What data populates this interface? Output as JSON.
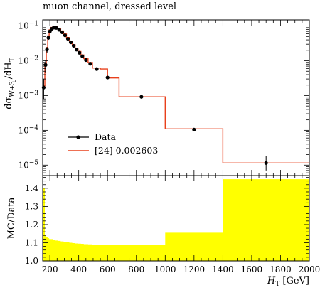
{
  "chart_data": [
    {
      "type": "line",
      "panel": "main",
      "title": "muon channel, dressed level",
      "ylabel": "dσ_{W+3j}/dH_T",
      "yscale": "log",
      "xlim": [
        150,
        2000
      ],
      "ylim": [
        5e-06,
        0.15
      ],
      "y_tick_labels": [
        "10^-5",
        "10^-4",
        "10^-3",
        "10^-2",
        "10^-1"
      ],
      "legend_position": "center-left",
      "legend": [
        "Data",
        "[24] 0.002603"
      ],
      "colors": {
        "data": "#000000",
        "mc": "#e8401c"
      },
      "series": [
        {
          "name": "Data",
          "style": "points-with-errorbars",
          "points": [
            {
              "x": 157,
              "y": 0.0017,
              "err_low": 0.0009,
              "err_high": 0.0013
            },
            {
              "x": 170,
              "y": 0.0076,
              "err_low": 0.003,
              "err_high": 0.003
            },
            {
              "x": 180,
              "y": 0.021,
              "err_low": 0.004,
              "err_high": 0.004
            },
            {
              "x": 190,
              "y": 0.046,
              "err_low": 0.006,
              "err_high": 0.006
            },
            {
              "x": 200,
              "y": 0.07,
              "err_low": 0.006,
              "err_high": 0.006
            },
            {
              "x": 212,
              "y": 0.083,
              "err_low": 0.006,
              "err_high": 0.006
            },
            {
              "x": 227,
              "y": 0.09,
              "err_low": 0.006,
              "err_high": 0.006
            },
            {
              "x": 245,
              "y": 0.088,
              "err_low": 0.006,
              "err_high": 0.006
            },
            {
              "x": 265,
              "y": 0.078,
              "err_low": 0.005,
              "err_high": 0.005
            },
            {
              "x": 285,
              "y": 0.066,
              "err_low": 0.005,
              "err_high": 0.005
            },
            {
              "x": 305,
              "y": 0.054,
              "err_low": 0.004,
              "err_high": 0.004
            },
            {
              "x": 325,
              "y": 0.043,
              "err_low": 0.003,
              "err_high": 0.003
            },
            {
              "x": 345,
              "y": 0.034,
              "err_low": 0.003,
              "err_high": 0.003
            },
            {
              "x": 365,
              "y": 0.027,
              "err_low": 0.002,
              "err_high": 0.002
            },
            {
              "x": 385,
              "y": 0.021,
              "err_low": 0.002,
              "err_high": 0.002
            },
            {
              "x": 405,
              "y": 0.017,
              "err_low": 0.0015,
              "err_high": 0.0015
            },
            {
              "x": 425,
              "y": 0.0135,
              "err_low": 0.0012,
              "err_high": 0.0012
            },
            {
              "x": 450,
              "y": 0.0105,
              "err_low": 0.0009,
              "err_high": 0.0009
            },
            {
              "x": 480,
              "y": 0.0082,
              "err_low": 0.0007,
              "err_high": 0.0007
            },
            {
              "x": 525,
              "y": 0.0058,
              "err_low": 0.0005,
              "err_high": 0.0005
            },
            {
              "x": 600,
              "y": 0.0033,
              "err_low": 0.0003,
              "err_high": 0.0003
            },
            {
              "x": 835,
              "y": 0.00092,
              "err_low": 6e-05,
              "err_high": 6e-05
            },
            {
              "x": 1200,
              "y": 0.000105,
              "err_low": 1.2e-05,
              "err_high": 1.2e-05
            },
            {
              "x": 1700,
              "y": 1.15e-05,
              "err_low": 4.5e-06,
              "err_high": 6.5e-06
            }
          ]
        },
        {
          "name": "[24] 0.002603",
          "style": "step-histogram",
          "bin_edges": [
            150,
            165,
            175,
            185,
            195,
            205,
            220,
            235,
            255,
            275,
            295,
            315,
            335,
            355,
            375,
            395,
            415,
            435,
            465,
            495,
            550,
            600,
            680,
            1000,
            1400,
            2000
          ],
          "values": [
            0.0019,
            0.0082,
            0.024,
            0.052,
            0.078,
            0.091,
            0.099,
            0.096,
            0.085,
            0.072,
            0.059,
            0.047,
            0.037,
            0.029,
            0.023,
            0.0185,
            0.0147,
            0.0115,
            0.0089,
            0.0062,
            0.0058,
            0.0032,
            0.00092,
            0.00011,
            1.15e-05
          ]
        }
      ]
    },
    {
      "type": "area",
      "panel": "ratio",
      "ylabel": "MC/Data",
      "xlabel": "H_T [GeV]",
      "xlim": [
        150,
        2000
      ],
      "ylim": [
        1.0,
        1.47
      ],
      "x_ticks": [
        200,
        400,
        600,
        800,
        1000,
        1200,
        1400,
        1600,
        1800,
        2000
      ],
      "y_ticks": [
        1.0,
        1.1,
        1.2,
        1.3,
        1.4
      ],
      "y_tick_labels": [
        "1.0",
        "1.1",
        "1.2",
        "1.3",
        "1.4"
      ],
      "fill_color": "#ffff00",
      "series": [
        {
          "name": "",
          "style": "step-band",
          "bin_edges": [
            150,
            165,
            175,
            185,
            195,
            205,
            220,
            235,
            255,
            275,
            295,
            315,
            335,
            355,
            375,
            395,
            415,
            435,
            465,
            495,
            550,
            600,
            680,
            1000,
            1400,
            2000
          ],
          "values": [
            1.4,
            1.14,
            1.13,
            1.125,
            1.12,
            1.12,
            1.115,
            1.112,
            1.11,
            1.107,
            1.105,
            1.102,
            1.1,
            1.098,
            1.096,
            1.095,
            1.094,
            1.092,
            1.091,
            1.09,
            1.088,
            1.087,
            1.087,
            1.155,
            1.45
          ]
        }
      ]
    }
  ]
}
